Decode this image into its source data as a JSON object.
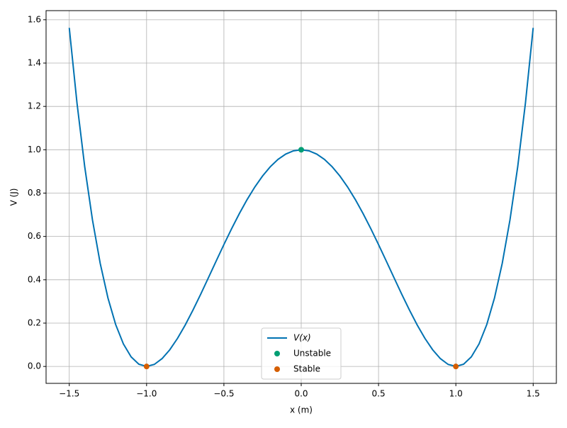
{
  "chart_data": {
    "type": "line",
    "xlabel": "x (m)",
    "ylabel": "V (J)",
    "xlim": [
      -1.65,
      1.65
    ],
    "ylim": [
      -0.078,
      1.642
    ],
    "xticks": [
      {
        "value": -1.5,
        "label": "−1.5"
      },
      {
        "value": -1.0,
        "label": "−1.0"
      },
      {
        "value": -0.5,
        "label": "−0.5"
      },
      {
        "value": 0.0,
        "label": "0.0"
      },
      {
        "value": 0.5,
        "label": "0.5"
      },
      {
        "value": 1.0,
        "label": "1.0"
      },
      {
        "value": 1.5,
        "label": "1.5"
      }
    ],
    "yticks": [
      {
        "value": 0.0,
        "label": "0.0"
      },
      {
        "value": 0.2,
        "label": "0.2"
      },
      {
        "value": 0.4,
        "label": "0.4"
      },
      {
        "value": 0.6,
        "label": "0.6"
      },
      {
        "value": 0.8,
        "label": "0.8"
      },
      {
        "value": 1.0,
        "label": "1.0"
      },
      {
        "value": 1.2,
        "label": "1.2"
      },
      {
        "value": 1.4,
        "label": "1.4"
      },
      {
        "value": 1.6,
        "label": "1.6"
      }
    ],
    "grid": true,
    "legend": "lower center",
    "series": [
      {
        "name": "V(x)",
        "style": "line",
        "color": "#0072b2",
        "x": [
          -1.5,
          -1.45,
          -1.4,
          -1.35,
          -1.3,
          -1.25,
          -1.2,
          -1.15,
          -1.1,
          -1.05,
          -1.0,
          -0.95,
          -0.9,
          -0.85,
          -0.8,
          -0.75,
          -0.7,
          -0.65,
          -0.6,
          -0.55,
          -0.5,
          -0.45,
          -0.4,
          -0.35,
          -0.3,
          -0.25,
          -0.2,
          -0.15,
          -0.1,
          -0.05,
          0,
          0.05,
          0.1,
          0.15,
          0.2,
          0.25,
          0.3,
          0.35,
          0.4,
          0.45,
          0.5,
          0.55,
          0.6,
          0.65,
          0.7,
          0.75,
          0.8,
          0.85,
          0.9,
          0.95,
          1.0,
          1.05,
          1.1,
          1.15,
          1.2,
          1.25,
          1.3,
          1.35,
          1.4,
          1.45,
          1.5
        ],
        "values": [
          1.5625,
          1.2155,
          0.9216,
          0.6765,
          0.4761,
          0.3164,
          0.1936,
          0.104,
          0.0441,
          0.0105,
          0,
          0.0095,
          0.0361,
          0.077,
          0.1296,
          0.1914,
          0.2601,
          0.3335,
          0.4096,
          0.4865,
          0.5625,
          0.636,
          0.7056,
          0.77,
          0.8281,
          0.8789,
          0.9216,
          0.9555,
          0.9801,
          0.995,
          1,
          0.995,
          0.9801,
          0.9555,
          0.9216,
          0.8789,
          0.8281,
          0.77,
          0.7056,
          0.636,
          0.5625,
          0.4865,
          0.4096,
          0.3335,
          0.2601,
          0.1914,
          0.1296,
          0.077,
          0.0361,
          0.0095,
          0,
          0.0105,
          0.0441,
          0.104,
          0.1936,
          0.3164,
          0.4761,
          0.6765,
          0.9216,
          1.2155,
          1.5625
        ]
      },
      {
        "name": "Unstable",
        "style": "marker",
        "color": "#009e73",
        "x": [
          0
        ],
        "values": [
          1
        ]
      },
      {
        "name": "Stable",
        "style": "marker",
        "color": "#d55e00",
        "x": [
          -1,
          1
        ],
        "values": [
          0,
          0
        ]
      }
    ]
  }
}
